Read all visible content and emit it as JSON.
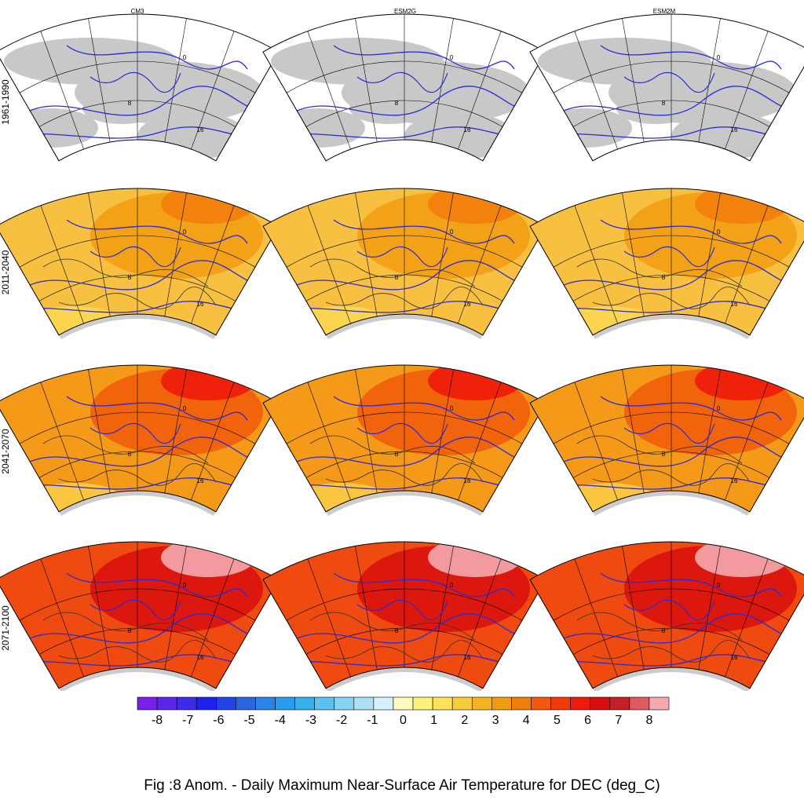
{
  "figure": {
    "caption": "Fig :8  Anom.  - Daily Maximum Near-Surface Air Temperature for DEC (deg_C)"
  },
  "columns": [
    "CM3",
    "ESM2G",
    "ESM2M"
  ],
  "rows": [
    "1961-1990",
    "2011-2040",
    "2041-2070",
    "2071-2100"
  ],
  "contour_labels": [
    "0",
    "8",
    "16"
  ],
  "colorbar": {
    "ticks": [
      "-8",
      "-7",
      "-6",
      "-5",
      "-4",
      "-3",
      "-2",
      "-1",
      "0",
      "1",
      "2",
      "3",
      "4",
      "5",
      "6",
      "7",
      "8"
    ],
    "colors": [
      "#7a1fe8",
      "#5a28e8",
      "#3a2ee8",
      "#1e22f0",
      "#2244e6",
      "#2a66e0",
      "#2a84e8",
      "#2a9cee",
      "#34b2f0",
      "#5ac4f0",
      "#86d2f2",
      "#aee0f4",
      "#d6f0fa",
      "#fffac0",
      "#fff27a",
      "#fde25a",
      "#f8cc3a",
      "#f4b420",
      "#f29c10",
      "#f27e0a",
      "#f05a0a",
      "#f03a0a",
      "#ee1a0a",
      "#d80e0e",
      "#c41e26",
      "#dc5a60",
      "#f4a8b0"
    ]
  },
  "panel_fill": {
    "1961-1990": "#ffffff",
    "2011-2040": "#f8c040",
    "2041-2070": "#f49a18",
    "2071-2100": "#ef4a10"
  },
  "colors": {
    "land_mask": "#c8c8c8",
    "contour": "#2a2ad8",
    "coast": "#333333"
  }
}
